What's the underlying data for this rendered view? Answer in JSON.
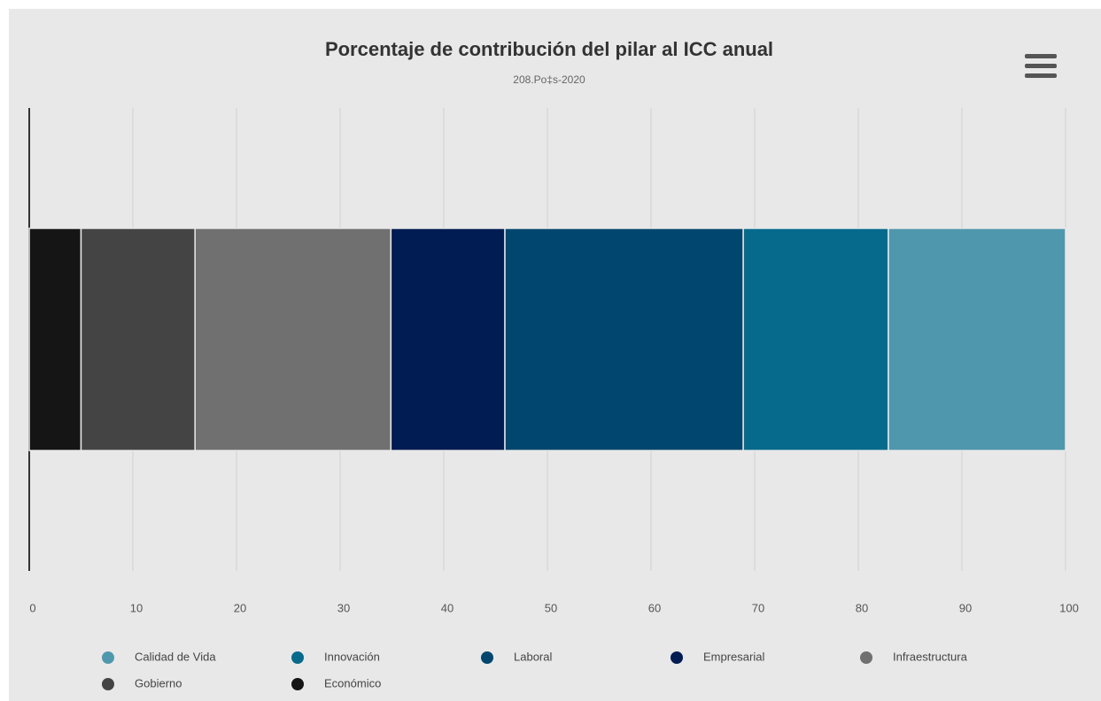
{
  "chart_data": {
    "type": "stacked_bar_horizontal",
    "title": "Porcentaje de contribución del pilar al ICC anual",
    "subtitle": "208.Po‡s-2020",
    "categories": [
      null
    ],
    "series": [
      {
        "name": "Calidad de Vida",
        "color": "#4f97ad",
        "values": [
          17.1
        ]
      },
      {
        "name": "Innovación",
        "color": "#066a8c",
        "values": [
          14.0
        ]
      },
      {
        "name": "Laboral",
        "color": "#00466e",
        "values": [
          23.0
        ]
      },
      {
        "name": "Empresarial",
        "color": "#001c52",
        "values": [
          11.0
        ]
      },
      {
        "name": "Infraestructura",
        "color": "#707070",
        "values": [
          18.9
        ]
      },
      {
        "name": "Gobierno",
        "color": "#444444",
        "values": [
          11.0
        ]
      },
      {
        "name": "Económico",
        "color": "#151515",
        "values": [
          5.0
        ]
      }
    ],
    "xlim": [
      0,
      100
    ],
    "xticks": [
      0,
      10,
      20,
      30,
      40,
      50,
      60,
      70,
      80,
      90,
      100
    ],
    "grid": true,
    "legend": "bottom"
  }
}
